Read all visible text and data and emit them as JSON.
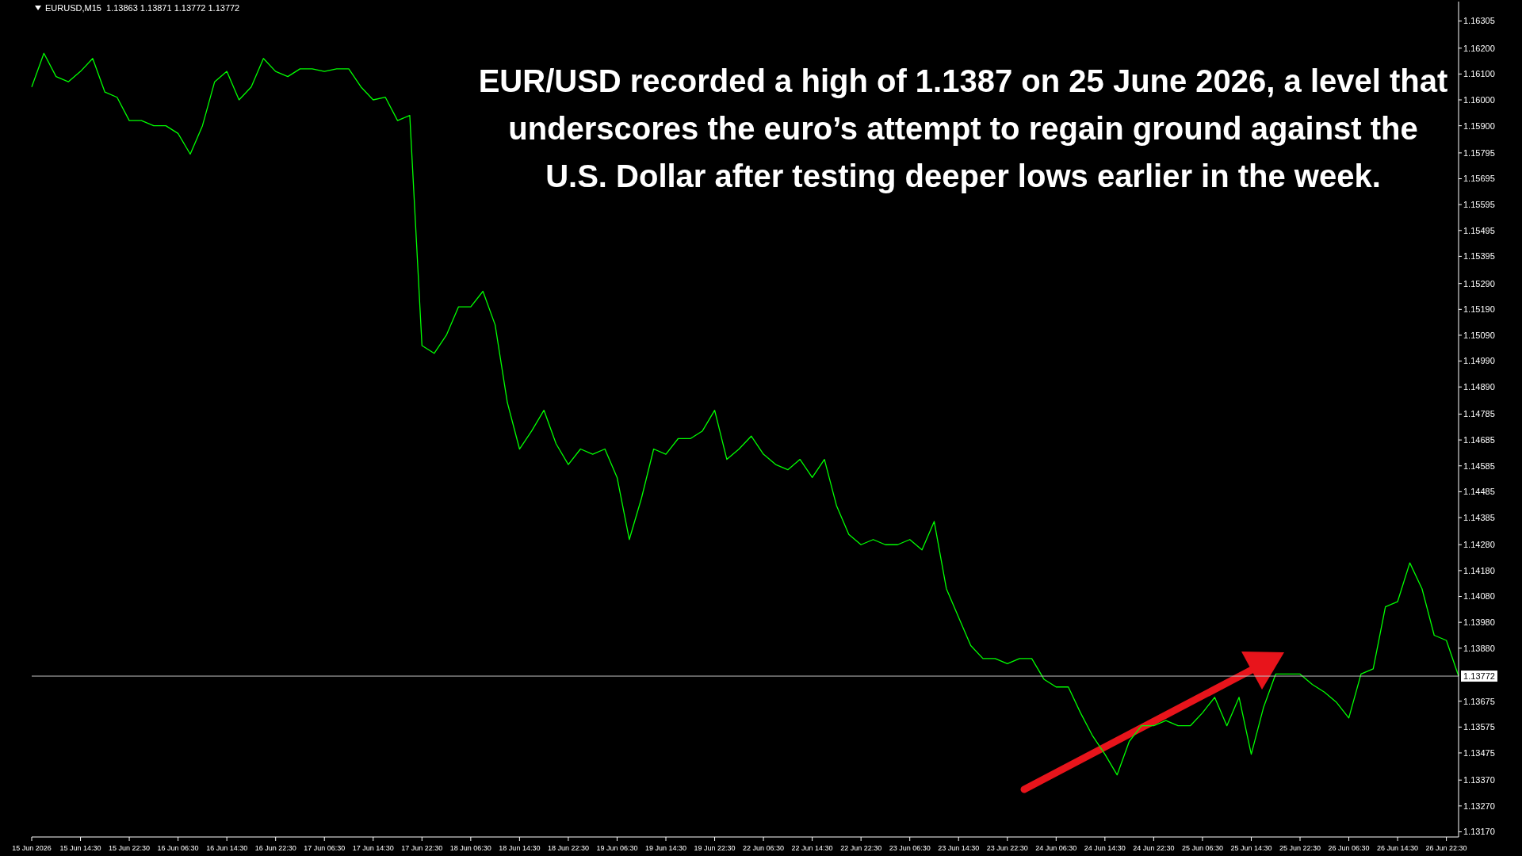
{
  "chart_data": {
    "type": "line",
    "title": "EURUSD,M15  1.13863 1.13871 1.13772 1.13772",
    "annotations": [
      "EUR/USD recorded a high of 1.1387 on 25 June 2026, a level that underscores the euro’s attempt to regain ground against the U.S. Dollar after testing deeper lows earlier in the week."
    ],
    "categories": [
      "15 Jun 2026",
      null,
      null,
      null,
      "15 Jun 14:30",
      null,
      null,
      null,
      "15 Jun 22:30",
      null,
      null,
      null,
      "16 Jun 06:30",
      null,
      null,
      null,
      "16 Jun 14:30",
      null,
      null,
      null,
      "16 Jun 22:30",
      null,
      null,
      null,
      "17 Jun 06:30",
      null,
      null,
      null,
      "17 Jun 14:30",
      null,
      null,
      null,
      "17 Jun 22:30",
      null,
      null,
      null,
      "18 Jun 06:30",
      null,
      null,
      null,
      "18 Jun 14:30",
      null,
      null,
      null,
      "18 Jun 22:30",
      null,
      null,
      null,
      "19 Jun 06:30",
      null,
      null,
      null,
      "19 Jun 14:30",
      null,
      null,
      null,
      "19 Jun 22:30",
      null,
      null,
      null,
      "22 Jun 06:30",
      null,
      null,
      null,
      "22 Jun 14:30",
      null,
      null,
      null,
      "22 Jun 22:30",
      null,
      null,
      null,
      "23 Jun 06:30",
      null,
      null,
      null,
      "23 Jun 14:30",
      null,
      null,
      null,
      "23 Jun 22:30",
      null,
      null,
      null,
      "24 Jun 06:30",
      null,
      null,
      null,
      "24 Jun 14:30",
      null,
      null,
      null,
      "24 Jun 22:30",
      null,
      null,
      null,
      "25 Jun 06:30",
      null,
      null,
      null,
      "25 Jun 14:30",
      null,
      null,
      null,
      "25 Jun 22:30",
      null,
      null,
      null,
      "26 Jun 06:30",
      null,
      null,
      null,
      "26 Jun 14:30",
      null,
      null,
      null,
      "26 Jun 22:30",
      null
    ],
    "series": [
      {
        "color": "#00ff00",
        "values": [
          1.1605,
          1.1618,
          1.1609,
          1.1607,
          1.1611,
          1.1616,
          1.1603,
          1.1601,
          1.1592,
          1.1592,
          1.159,
          1.159,
          1.1587,
          1.1579,
          1.159,
          1.1607,
          1.1611,
          1.16,
          1.1605,
          1.1616,
          1.1611,
          1.1609,
          1.1612,
          1.1612,
          1.1611,
          1.1612,
          1.1612,
          1.1605,
          1.16,
          1.1601,
          1.1592,
          1.1594,
          1.1505,
          1.1502,
          1.1509,
          1.152,
          1.152,
          1.1526,
          1.1513,
          1.1483,
          1.1465,
          1.1472,
          1.148,
          1.1467,
          1.1459,
          1.1465,
          1.1463,
          1.1465,
          1.1454,
          1.143,
          1.1446,
          1.1465,
          1.1463,
          1.1469,
          1.1469,
          1.1472,
          1.148,
          1.1461,
          1.1465,
          1.147,
          1.1463,
          1.1459,
          1.1457,
          1.1461,
          1.1454,
          1.1461,
          1.1443,
          1.1432,
          1.1428,
          1.143,
          1.1428,
          1.1428,
          1.143,
          1.1426,
          1.1437,
          1.1411,
          1.14,
          1.1389,
          1.1384,
          1.1384,
          1.1382,
          1.1384,
          1.1384,
          1.1376,
          1.1373,
          1.1373,
          1.1363,
          1.1354,
          1.1347,
          1.1339,
          1.1352,
          1.1358,
          1.1358,
          1.136,
          1.1358,
          1.1358,
          1.1363,
          1.1369,
          1.1358,
          1.1369,
          1.1347,
          1.1365,
          1.1378,
          1.1378,
          1.1378,
          1.1374,
          1.1371,
          1.1367,
          1.1361,
          1.1378,
          1.138,
          1.1404,
          1.1406,
          1.1421,
          1.1411,
          1.1393,
          1.1391,
          1.13772
        ]
      }
    ],
    "ylim": [
      1.1315,
      1.1638
    ],
    "yticks": [
      {
        "value": 1.16305,
        "label": "1.16305"
      },
      {
        "value": 1.162,
        "label": "1.16200"
      },
      {
        "value": 1.161,
        "label": "1.16100"
      },
      {
        "value": 1.16,
        "label": "1.16000"
      },
      {
        "value": 1.159,
        "label": "1.15900"
      },
      {
        "value": 1.15795,
        "label": "1.15795"
      },
      {
        "value": 1.15695,
        "label": "1.15695"
      },
      {
        "value": 1.15595,
        "label": "1.15595"
      },
      {
        "value": 1.15495,
        "label": "1.15495"
      },
      {
        "value": 1.15395,
        "label": "1.15395"
      },
      {
        "value": 1.1529,
        "label": "1.15290"
      },
      {
        "value": 1.1519,
        "label": "1.15190"
      },
      {
        "value": 1.1509,
        "label": "1.15090"
      },
      {
        "value": 1.1499,
        "label": "1.14990"
      },
      {
        "value": 1.1489,
        "label": "1.14890"
      },
      {
        "value": 1.14785,
        "label": "1.14785"
      },
      {
        "value": 1.14685,
        "label": "1.14685"
      },
      {
        "value": 1.14585,
        "label": "1.14585"
      },
      {
        "value": 1.14485,
        "label": "1.14485"
      },
      {
        "value": 1.14385,
        "label": "1.14385"
      },
      {
        "value": 1.1428,
        "label": "1.14280"
      },
      {
        "value": 1.1418,
        "label": "1.14180"
      },
      {
        "value": 1.1408,
        "label": "1.14080"
      },
      {
        "value": 1.1398,
        "label": "1.13980"
      },
      {
        "value": 1.1388,
        "label": "1.13880"
      },
      {
        "value": 1.13675,
        "label": "1.13675"
      },
      {
        "value": 1.13575,
        "label": "1.13575"
      },
      {
        "value": 1.13475,
        "label": "1.13475"
      },
      {
        "value": 1.1337,
        "label": "1.13370"
      },
      {
        "value": 1.1327,
        "label": "1.13270"
      },
      {
        "value": 1.1317,
        "label": "1.13170"
      }
    ],
    "ref_lines": [
      {
        "axis": "y",
        "value": 1.13772,
        "label": "1.13772",
        "color": "#c0c0c0"
      }
    ]
  }
}
